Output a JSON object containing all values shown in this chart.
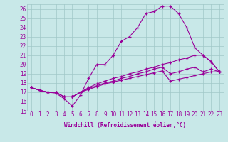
{
  "xlabel": "Windchill (Refroidissement éolien,°C)",
  "background_color": "#c8e8e8",
  "grid_color": "#a0c8c8",
  "line_color": "#990099",
  "xlim_min": -0.5,
  "xlim_max": 23.5,
  "ylim_min": 15,
  "ylim_max": 26.5,
  "xticks": [
    0,
    1,
    2,
    3,
    4,
    5,
    6,
    7,
    8,
    9,
    10,
    11,
    12,
    13,
    14,
    15,
    16,
    17,
    18,
    19,
    20,
    21,
    22,
    23
  ],
  "yticks": [
    15,
    16,
    17,
    18,
    19,
    20,
    21,
    22,
    23,
    24,
    25,
    26
  ],
  "series": [
    [
      17.5,
      17.2,
      17.0,
      16.9,
      16.3,
      15.5,
      16.7,
      18.5,
      20.0,
      20.0,
      21.0,
      22.5,
      23.0,
      24.0,
      25.5,
      25.7,
      26.3,
      26.3,
      25.5,
      24.0,
      21.8,
      21.0,
      20.3,
      19.2
    ],
    [
      17.5,
      17.2,
      17.0,
      17.0,
      16.5,
      16.5,
      17.0,
      17.5,
      17.9,
      18.2,
      18.5,
      18.7,
      19.0,
      19.2,
      19.5,
      19.7,
      20.0,
      20.2,
      20.5,
      20.7,
      21.0,
      21.0,
      20.3,
      19.2
    ],
    [
      17.5,
      17.2,
      17.0,
      17.0,
      16.5,
      16.5,
      17.0,
      17.4,
      17.7,
      18.0,
      18.2,
      18.5,
      18.7,
      19.0,
      19.2,
      19.5,
      19.7,
      19.0,
      19.2,
      19.5,
      19.7,
      19.2,
      19.5,
      19.2
    ],
    [
      17.5,
      17.2,
      17.0,
      17.0,
      16.5,
      16.5,
      17.0,
      17.3,
      17.6,
      17.9,
      18.1,
      18.3,
      18.5,
      18.7,
      18.9,
      19.1,
      19.3,
      18.2,
      18.4,
      18.6,
      18.8,
      19.0,
      19.2,
      19.2
    ]
  ],
  "tick_fontsize": 5.5,
  "xlabel_fontsize": 5.5
}
